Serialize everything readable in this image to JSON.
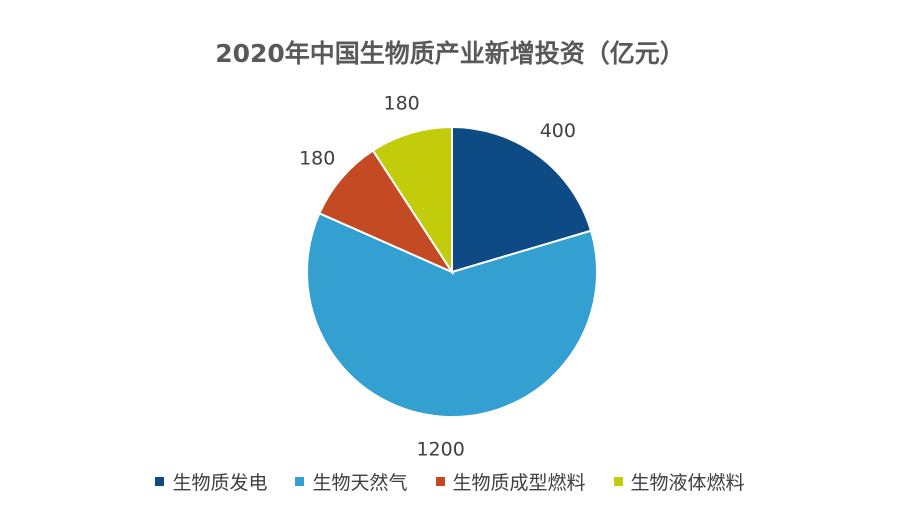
{
  "chart_data": {
    "type": "pie",
    "title": "2020年中国生物质产业新增投资（亿元）",
    "slices": [
      {
        "name": "生物质发电",
        "value": 400,
        "label": "400",
        "color": "#0E4A84"
      },
      {
        "name": "生物天然气",
        "value": 1200,
        "label": "1200",
        "color": "#33A0D1"
      },
      {
        "name": "生物质成型燃料",
        "value": 180,
        "label": "180",
        "color": "#C34A22"
      },
      {
        "name": "生物液体燃料",
        "value": 180,
        "label": "180",
        "color": "#C2CC0A"
      }
    ],
    "legend_position": "bottom",
    "start_angle": "12 o'clock",
    "direction": "clockwise"
  }
}
